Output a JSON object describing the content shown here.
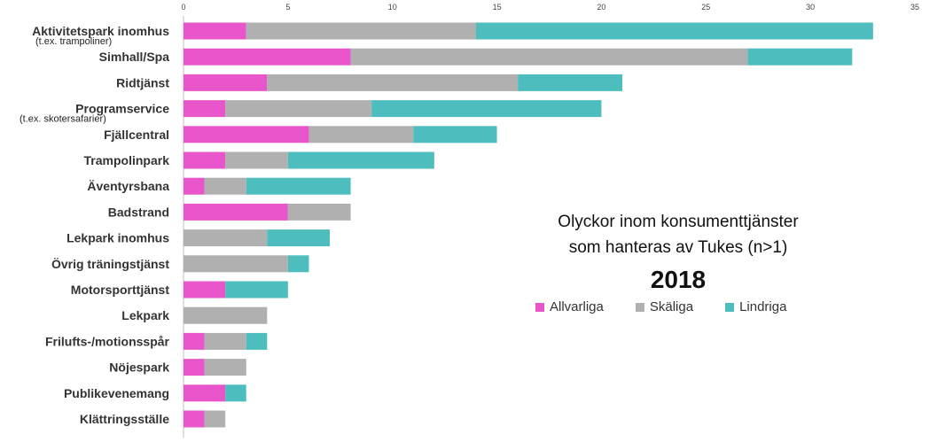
{
  "chart_data": {
    "type": "bar",
    "orientation": "horizontal",
    "stacked": true,
    "title_lines": [
      "Olyckor inom konsumenttjänster",
      "som hanteras av Tukes (n>1)"
    ],
    "subtitle": "2018",
    "xlim": [
      0,
      35
    ],
    "x_ticks": [
      "0",
      "5",
      "10",
      "15",
      "20",
      "25",
      "30",
      "35"
    ],
    "grid": false,
    "legend_position": "right",
    "categories": [
      {
        "label": "Aktivitetspark inomhus",
        "sublabel": "(t.ex. trampoliner)"
      },
      {
        "label": "Simhall/Spa",
        "sublabel": ""
      },
      {
        "label": "Ridtjänst",
        "sublabel": ""
      },
      {
        "label": "Programservice",
        "sublabel": "(t.ex. skotersafarier)"
      },
      {
        "label": "Fjällcentral",
        "sublabel": ""
      },
      {
        "label": "Trampolinpark",
        "sublabel": ""
      },
      {
        "label": "Äventyrsbana",
        "sublabel": ""
      },
      {
        "label": "Badstrand",
        "sublabel": ""
      },
      {
        "label": "Lekpark inomhus",
        "sublabel": ""
      },
      {
        "label": "Övrig träningstjänst",
        "sublabel": ""
      },
      {
        "label": "Motorsporttjänst",
        "sublabel": ""
      },
      {
        "label": "Lekpark",
        "sublabel": ""
      },
      {
        "label": "Frilufts-/motionsspår",
        "sublabel": ""
      },
      {
        "label": "Nöjespark",
        "sublabel": ""
      },
      {
        "label": "Publikevenemang",
        "sublabel": ""
      },
      {
        "label": "Klättringsställe",
        "sublabel": ""
      }
    ],
    "series": [
      {
        "name": "Allvarliga",
        "color": "#E956CB",
        "values": [
          3,
          8,
          4,
          2,
          6,
          2,
          1,
          5,
          0,
          0,
          2,
          0,
          1,
          1,
          2,
          1
        ]
      },
      {
        "name": "Skäliga",
        "color": "#B0B0B0",
        "values": [
          11,
          19,
          12,
          7,
          5,
          3,
          2,
          3,
          4,
          5,
          0,
          4,
          2,
          2,
          0,
          1
        ]
      },
      {
        "name": "Lindriga",
        "color": "#4DBDBD",
        "values": [
          19,
          5,
          5,
          11,
          4,
          7,
          5,
          0,
          3,
          1,
          3,
          0,
          1,
          0,
          1,
          0
        ]
      }
    ]
  }
}
